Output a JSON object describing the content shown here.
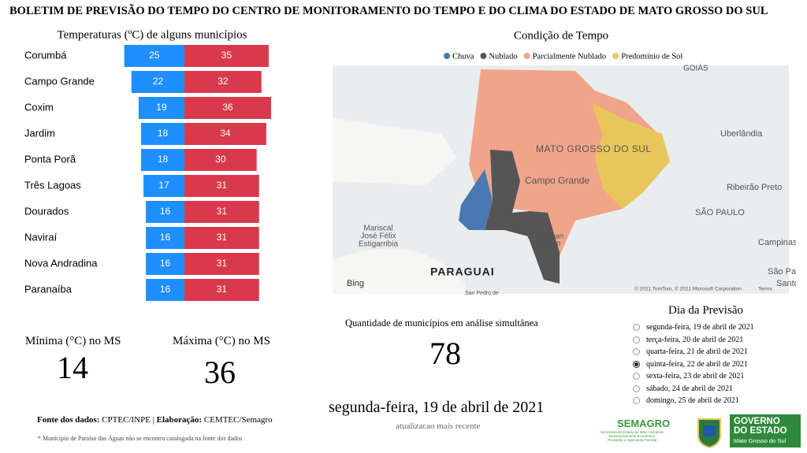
{
  "header": {
    "title": "BOLETIM DE PREVISÃO DO TEMPO DO CENTRO DE MONITORAMENTO DO TEMPO E DO CLIMA DO ESTADO DE MATO GROSSO DO SUL"
  },
  "chart_data": {
    "type": "diverging-bar",
    "title": "Temperaturas (ºC) de alguns municípios",
    "categories": [
      "Corumbá",
      "Campo Grande",
      "Coxim",
      "Jardim",
      "Ponta Porã",
      "Três Lagoas",
      "Dourados",
      "Naviraí",
      "Nova Andradina",
      "Paranaíba"
    ],
    "series": [
      {
        "color": "#1f8fff",
        "values": [
          25,
          22,
          19,
          18,
          18,
          17,
          16,
          16,
          16,
          16
        ]
      },
      {
        "color": "#d83a4b",
        "values": [
          35,
          32,
          36,
          34,
          30,
          31,
          31,
          31,
          31,
          31
        ]
      }
    ]
  },
  "map": {
    "title": "Condição de Tempo",
    "legend": [
      {
        "name": "Chuva",
        "color": "#4a78b0"
      },
      {
        "name": "Nublado",
        "color": "#555555"
      },
      {
        "name": "Parcialmente Nublado",
        "color": "#f0a58a"
      },
      {
        "name": "Predomínio de Sol",
        "color": "#e8c65a"
      }
    ],
    "labels": [
      "MATO GROSSO DO SUL",
      "Campo Grande",
      "Uberlândia",
      "GOIÁS",
      "Ribeirão Preto",
      "SÃO PAULO",
      "Campinas",
      "São Paulo",
      "Santos",
      "Mariscal",
      "José Félix",
      "Estigarribia",
      "Pedro Juan",
      "Caballero",
      "PARAGUAI",
      "Bing",
      "© 2021 TomTom, © 2021 Microsoft Corporation",
      "Terms",
      "San Pedro de"
    ]
  },
  "cards": {
    "min_label": "Mínima (°C) no MS",
    "min_value": "14",
    "max_label": "Máxima (°C) no MS",
    "max_value": "36",
    "count_label": "Quantidade de municípios em análise simultânea",
    "count_value": "78",
    "date": "segunda-feira, 19 de abril de 2021",
    "date_note": "atualizacao mais recente"
  },
  "forecast": {
    "title": "Dia da Previsão",
    "options": [
      "segunda-feira, 19 de abril de 2021",
      "terça-feira, 20 de abril de 2021",
      "quarta-feira, 21 de abril de 2021",
      "quinta-feira, 22 de abril de 2021",
      "sexta-feira, 23 de abril de 2021",
      "sábado, 24 de abril de 2021",
      "domingo, 25 de abril de 2021"
    ],
    "selected": 3
  },
  "footer": {
    "source_label": "Fonte dos dados:",
    "source": "CPTEC/INPE |",
    "credit_label": "Elaboração:",
    "credit": "CEMTEC/Semagro",
    "note": "* Município de Paraíso das Águas não se encontra catalogada na fonte dos dados"
  },
  "logos": {
    "semagro": "SEMAGRO",
    "semagro_sub": [
      "Secretaria de Estado de Meio Ambiente,",
      "Desenvolvimento Econômico,",
      "Produção e Agricultura Familiar"
    ],
    "gov": [
      "GOVERNO",
      "DO ESTADO"
    ],
    "gov_sub": "Mato Grosso do Sul"
  }
}
